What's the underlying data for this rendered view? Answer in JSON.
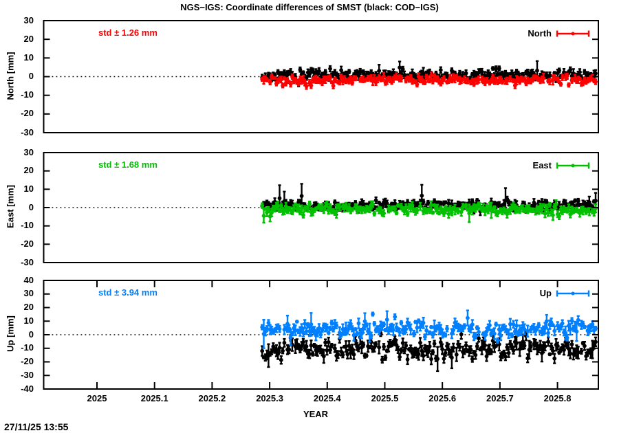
{
  "title": "NGS−IGS: Coordinate differences of SMST (black: COD−IGS)",
  "timestamp": "27/11/25 13:55",
  "x_axis": {
    "label": "YEAR"
  },
  "chart_data": {
    "type": "scatter-errorbars",
    "x_domain": [
      2024.9074,
      2025.871
    ],
    "x_ticks": {
      "values": [
        2025.0,
        2025.1,
        2025.2,
        2025.3,
        2025.4,
        2025.5,
        2025.6,
        2025.7,
        2025.8
      ],
      "labels": [
        "2025",
        "2025.1",
        "2025.2",
        "2025.3",
        "2025.4",
        "2025.5",
        "2025.6",
        "2025.7",
        "2025.8"
      ]
    },
    "data_x_start": 2025.287,
    "data_x_end": 2025.868,
    "data_step": 0.002745,
    "legend_note": "black: COD−IGS",
    "panels": [
      {
        "id": "north",
        "ylabel": "North [mm]",
        "legend_label": "North",
        "std_label": "std ± 1.26 mm",
        "color": "#ff0000",
        "ylim": [
          -30,
          30
        ],
        "x_tics": false,
        "yticks": {
          "values": [
            30,
            20,
            10,
            0,
            -10,
            -20,
            -30
          ],
          "labels": [
            "30",
            "20",
            "10",
            "0",
            "-10",
            "-20",
            "-30"
          ]
        },
        "series": [
          {
            "name": "COD−IGS",
            "color": "#000000",
            "mean": 1.0,
            "sd": 1.25,
            "err": 1.0,
            "err_sd": 0.35,
            "spike_p": 0.02,
            "spike_mul": 2.4,
            "spike_dir": 1,
            "wave": 0.35,
            "seed": 11
          },
          {
            "name": "NGS−IGS",
            "color": "#ff0000",
            "mean": -1.7,
            "sd": 1.2,
            "err": 1.0,
            "err_sd": 0.35,
            "spike_p": 0.015,
            "spike_mul": 2.2,
            "spike_dir": -1,
            "wave": 0.35,
            "seed": 22
          }
        ]
      },
      {
        "id": "east",
        "ylabel": "East [mm]",
        "legend_label": "East",
        "std_label": "std ± 1.68 mm",
        "color": "#00c000",
        "ylim": [
          -30,
          30
        ],
        "x_tics": false,
        "yticks": {
          "values": [
            30,
            20,
            10,
            0,
            -10,
            -20,
            -30
          ],
          "labels": [
            "30",
            "20",
            "10",
            "0",
            "-10",
            "-20",
            "-30"
          ]
        },
        "series": [
          {
            "name": "COD−IGS",
            "color": "#000000",
            "mean": 1.2,
            "sd": 1.25,
            "err": 1.1,
            "err_sd": 0.45,
            "spike_p": 0.025,
            "spike_mul": 3.0,
            "spike_dir": 1,
            "wave": 0.3,
            "seed": 33
          },
          {
            "name": "NGS−IGS",
            "color": "#00c000",
            "mean": -1.2,
            "sd": 1.35,
            "err": 1.2,
            "err_sd": 0.45,
            "spike_p": 0.02,
            "spike_mul": 2.6,
            "spike_dir": -1,
            "wave": 0.3,
            "seed": 44
          }
        ]
      },
      {
        "id": "up",
        "ylabel": "Up [mm]",
        "legend_label": "Up",
        "std_label": "std ± 3.94 mm",
        "color": "#0080ff",
        "ylim": [
          -40,
          40
        ],
        "x_tics": true,
        "yticks": {
          "values": [
            40,
            30,
            20,
            10,
            0,
            -10,
            -20,
            -30,
            -40
          ],
          "labels": [
            "40",
            "30",
            "20",
            "10",
            "0",
            "-10",
            "-20",
            "-30",
            "-40"
          ]
        },
        "series": [
          {
            "name": "COD−IGS",
            "color": "#000000",
            "mean": -10.5,
            "sd": 3.5,
            "err": 2.5,
            "err_sd": 1.1,
            "spike_p": 0.055,
            "spike_mul": 2.3,
            "spike_dir": -1,
            "wave": 1.0,
            "seed": 55
          },
          {
            "name": "NGS−IGS",
            "color": "#0080ff",
            "mean": 4.2,
            "sd": 2.8,
            "err": 2.0,
            "err_sd": 0.9,
            "spike_p": 0.055,
            "spike_mul": 2.8,
            "spike_dir": 1,
            "wave": 0.9,
            "seed": 66
          }
        ]
      }
    ]
  }
}
